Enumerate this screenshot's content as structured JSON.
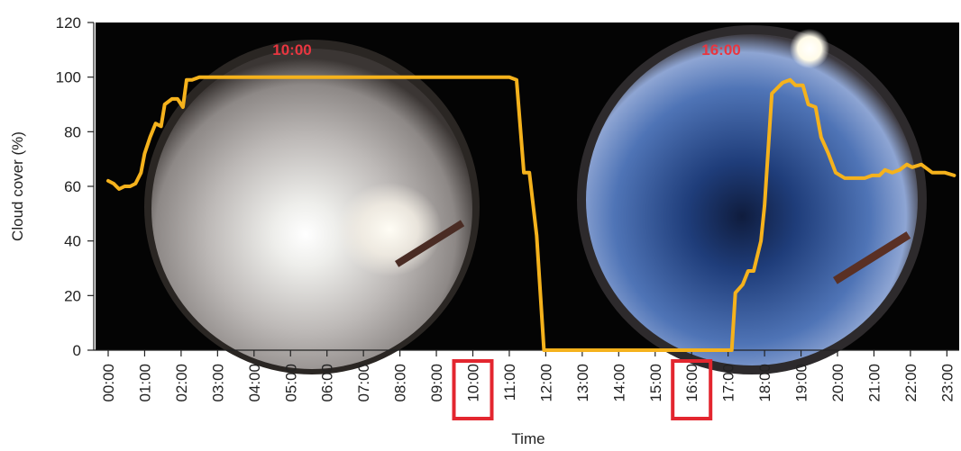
{
  "chart_data": {
    "type": "line",
    "xlabel": "Time",
    "ylabel": "Cloud cover (%)",
    "ylim": [
      0,
      120
    ],
    "yticks": [
      0,
      20,
      40,
      60,
      80,
      100,
      120
    ],
    "x_tick_labels": [
      "00:00",
      "01:00",
      "02:00",
      "03:00",
      "04:00",
      "05:00",
      "06:00",
      "07:00",
      "08:00",
      "09:00",
      "10:00",
      "11:00",
      "12:00",
      "13:00",
      "14:00",
      "15:00",
      "16:00",
      "17:00",
      "18:00",
      "19:00",
      "20:00",
      "21:00",
      "22:00",
      "23:00"
    ],
    "highlighted_ticks": [
      "10:00",
      "16:00"
    ],
    "sky_images": [
      {
        "label": "10:00",
        "sky": "overcast"
      },
      {
        "label": "16:00",
        "sky": "clear"
      }
    ],
    "series": [
      {
        "color": "#f5b21c",
        "x": [
          0,
          0.15,
          0.3,
          0.45,
          0.6,
          0.75,
          0.9,
          1.0,
          1.15,
          1.3,
          1.45,
          1.55,
          1.75,
          1.9,
          2.05,
          2.15,
          2.3,
          2.5,
          3,
          4,
          5,
          6,
          7,
          8,
          9,
          10,
          11.0,
          11.2,
          11.4,
          11.55,
          11.75,
          11.95,
          12.05,
          13,
          14,
          15,
          16,
          17.1,
          17.2,
          17.4,
          17.55,
          17.7,
          17.9,
          18.0,
          18.2,
          18.5,
          18.7,
          18.85,
          19.05,
          19.2,
          19.4,
          19.55,
          19.75,
          19.95,
          20.2,
          20.5,
          20.75,
          20.95,
          21.15,
          21.3,
          21.5,
          21.7,
          21.9,
          22.05,
          22.3,
          22.6,
          22.8,
          22.95,
          23.2
        ],
        "y": [
          62,
          61,
          59,
          60,
          60,
          61,
          65,
          72,
          78,
          83,
          82,
          90,
          92,
          92,
          89,
          99,
          99,
          100,
          100,
          100,
          100,
          100,
          100,
          100,
          100,
          100,
          100,
          99,
          65,
          65,
          42,
          0,
          0,
          0,
          0,
          0,
          0,
          0,
          21,
          24,
          29,
          29,
          40,
          53,
          94,
          98,
          99,
          97,
          97,
          90,
          89,
          78,
          72,
          65,
          63,
          63,
          63,
          64,
          64,
          66,
          65,
          66,
          68,
          67,
          68,
          65,
          65,
          65,
          64
        ]
      }
    ]
  }
}
